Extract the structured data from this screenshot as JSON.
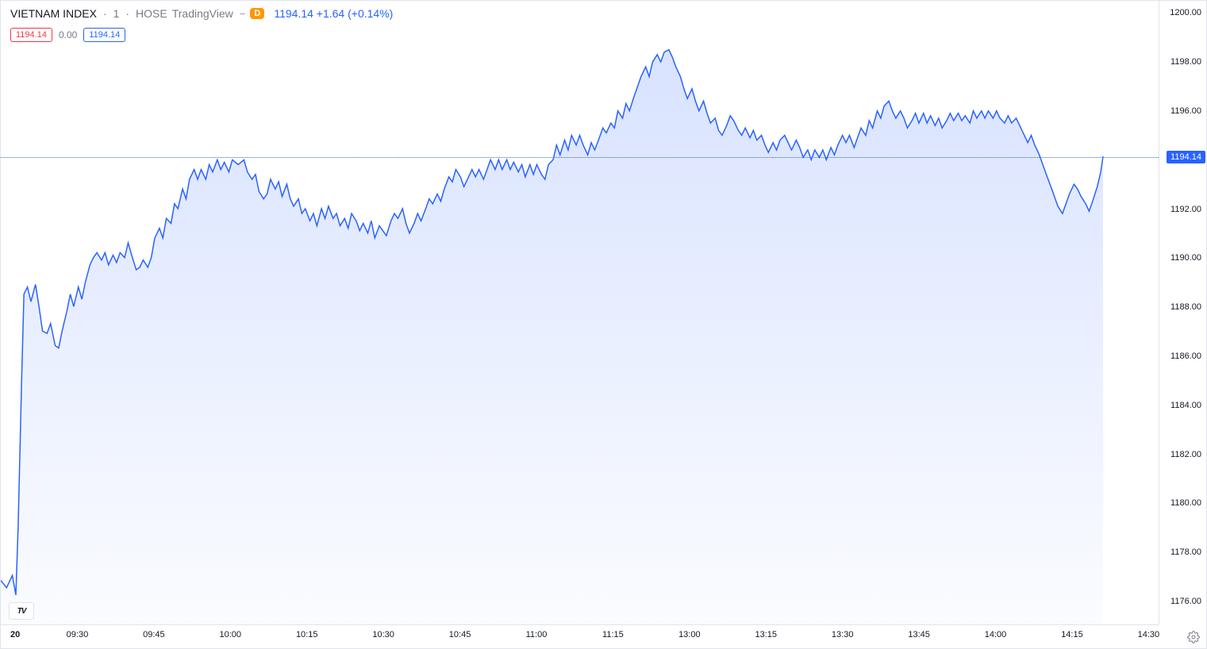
{
  "header": {
    "title": "VIETNAM INDEX",
    "interval": "1",
    "exchange": "HOSE",
    "source": "TradingView",
    "badge_minus": "−",
    "badge_d": "D",
    "last": "1194.14",
    "change": "+1.64",
    "pct": "(+0.14%)"
  },
  "pills": {
    "open_ref": "1194.14",
    "mid": "0.00",
    "close_ref": "1194.14"
  },
  "chart": {
    "type": "area",
    "line_color": "#2962ff",
    "fill_top": "rgba(41,98,255,0.18)",
    "fill_bottom": "rgba(41,98,255,0.02)",
    "background_color": "#ffffff",
    "grid_color": "#e0e3eb",
    "line_width": 1.5,
    "ylim": [
      1175,
      1200.5
    ],
    "yticks": [
      1176,
      1178,
      1180,
      1182,
      1184,
      1186,
      1188,
      1190,
      1192,
      1194,
      1196,
      1198,
      1200
    ],
    "ytick_labels": [
      "1176.00",
      "1178.00",
      "1180.00",
      "1182.00",
      "1184.00",
      "1186.00",
      "1188.00",
      "1190.00",
      "1192.00",
      "1194.00",
      "1196.00",
      "1198.00",
      "1200.00"
    ],
    "current_price": 1194.14,
    "current_label": "1194.14",
    "x_labels": [
      "20",
      "09:30",
      "09:45",
      "10:00",
      "10:15",
      "10:30",
      "10:45",
      "11:00",
      "11:15",
      "13:00",
      "13:15",
      "13:30",
      "13:45",
      "14:00",
      "14:15",
      "14:30"
    ],
    "x_positions": [
      0,
      6.6,
      13.2,
      19.8,
      26.4,
      33.0,
      39.6,
      46.2,
      52.8,
      59.4,
      66.0,
      72.6,
      79.2,
      85.8,
      92.4,
      99.0
    ],
    "series": [
      [
        0,
        1176.8
      ],
      [
        0.5,
        1176.5
      ],
      [
        1,
        1177.0
      ],
      [
        1.3,
        1176.2
      ],
      [
        1.5,
        1179.0
      ],
      [
        1.8,
        1185.0
      ],
      [
        2.0,
        1188.5
      ],
      [
        2.3,
        1188.8
      ],
      [
        2.6,
        1188.2
      ],
      [
        3.0,
        1188.9
      ],
      [
        3.3,
        1188.0
      ],
      [
        3.6,
        1187.0
      ],
      [
        4.0,
        1186.9
      ],
      [
        4.3,
        1187.3
      ],
      [
        4.7,
        1186.4
      ],
      [
        5.0,
        1186.3
      ],
      [
        5.3,
        1187.0
      ],
      [
        5.7,
        1187.8
      ],
      [
        6.0,
        1188.5
      ],
      [
        6.3,
        1188.0
      ],
      [
        6.7,
        1188.8
      ],
      [
        7.0,
        1188.3
      ],
      [
        7.3,
        1189.0
      ],
      [
        7.7,
        1189.7
      ],
      [
        8.0,
        1190.0
      ],
      [
        8.3,
        1190.2
      ],
      [
        8.7,
        1189.9
      ],
      [
        9.0,
        1190.2
      ],
      [
        9.3,
        1189.7
      ],
      [
        9.7,
        1190.1
      ],
      [
        10.0,
        1189.8
      ],
      [
        10.3,
        1190.2
      ],
      [
        10.7,
        1190.0
      ],
      [
        11.0,
        1190.6
      ],
      [
        11.3,
        1190.1
      ],
      [
        11.7,
        1189.5
      ],
      [
        12.0,
        1189.6
      ],
      [
        12.3,
        1189.9
      ],
      [
        12.7,
        1189.6
      ],
      [
        13.0,
        1190.0
      ],
      [
        13.3,
        1190.8
      ],
      [
        13.7,
        1191.2
      ],
      [
        14.0,
        1190.8
      ],
      [
        14.3,
        1191.6
      ],
      [
        14.7,
        1191.4
      ],
      [
        15.0,
        1192.2
      ],
      [
        15.3,
        1192.0
      ],
      [
        15.7,
        1192.8
      ],
      [
        16.0,
        1192.4
      ],
      [
        16.3,
        1193.2
      ],
      [
        16.7,
        1193.6
      ],
      [
        17.0,
        1193.2
      ],
      [
        17.3,
        1193.6
      ],
      [
        17.7,
        1193.2
      ],
      [
        18.0,
        1193.8
      ],
      [
        18.3,
        1193.5
      ],
      [
        18.7,
        1194.0
      ],
      [
        19.0,
        1193.6
      ],
      [
        19.3,
        1193.9
      ],
      [
        19.7,
        1193.5
      ],
      [
        20.0,
        1194.0
      ],
      [
        20.5,
        1193.8
      ],
      [
        21.0,
        1194.0
      ],
      [
        21.3,
        1193.5
      ],
      [
        21.7,
        1193.2
      ],
      [
        22.0,
        1193.4
      ],
      [
        22.3,
        1192.7
      ],
      [
        22.7,
        1192.4
      ],
      [
        23.0,
        1192.6
      ],
      [
        23.3,
        1193.2
      ],
      [
        23.7,
        1192.8
      ],
      [
        24.0,
        1193.1
      ],
      [
        24.3,
        1192.5
      ],
      [
        24.7,
        1193.0
      ],
      [
        25.0,
        1192.4
      ],
      [
        25.3,
        1192.1
      ],
      [
        25.7,
        1192.4
      ],
      [
        26.0,
        1191.8
      ],
      [
        26.3,
        1192.0
      ],
      [
        26.7,
        1191.5
      ],
      [
        27.0,
        1191.8
      ],
      [
        27.3,
        1191.3
      ],
      [
        27.7,
        1192.0
      ],
      [
        28.0,
        1191.6
      ],
      [
        28.3,
        1192.1
      ],
      [
        28.7,
        1191.6
      ],
      [
        29.0,
        1191.8
      ],
      [
        29.3,
        1191.3
      ],
      [
        29.7,
        1191.6
      ],
      [
        30.0,
        1191.2
      ],
      [
        30.3,
        1191.8
      ],
      [
        30.7,
        1191.5
      ],
      [
        31.0,
        1191.1
      ],
      [
        31.3,
        1191.4
      ],
      [
        31.7,
        1191.0
      ],
      [
        32.0,
        1191.5
      ],
      [
        32.3,
        1190.8
      ],
      [
        32.7,
        1191.3
      ],
      [
        33.0,
        1191.1
      ],
      [
        33.3,
        1190.9
      ],
      [
        33.7,
        1191.5
      ],
      [
        34.0,
        1191.8
      ],
      [
        34.3,
        1191.6
      ],
      [
        34.7,
        1192.0
      ],
      [
        35.0,
        1191.4
      ],
      [
        35.3,
        1191.0
      ],
      [
        35.7,
        1191.4
      ],
      [
        36.0,
        1191.8
      ],
      [
        36.3,
        1191.5
      ],
      [
        36.7,
        1192.0
      ],
      [
        37.0,
        1192.4
      ],
      [
        37.3,
        1192.2
      ],
      [
        37.7,
        1192.6
      ],
      [
        38.0,
        1192.3
      ],
      [
        38.3,
        1192.8
      ],
      [
        38.7,
        1193.3
      ],
      [
        39.0,
        1193.1
      ],
      [
        39.3,
        1193.6
      ],
      [
        39.7,
        1193.3
      ],
      [
        40.0,
        1192.9
      ],
      [
        40.3,
        1193.2
      ],
      [
        40.7,
        1193.6
      ],
      [
        41.0,
        1193.3
      ],
      [
        41.3,
        1193.6
      ],
      [
        41.7,
        1193.2
      ],
      [
        42.0,
        1193.6
      ],
      [
        42.3,
        1194.0
      ],
      [
        42.7,
        1193.6
      ],
      [
        43.0,
        1194.0
      ],
      [
        43.3,
        1193.6
      ],
      [
        43.7,
        1194.0
      ],
      [
        44.0,
        1193.6
      ],
      [
        44.3,
        1193.9
      ],
      [
        44.7,
        1193.5
      ],
      [
        45.0,
        1193.8
      ],
      [
        45.3,
        1193.3
      ],
      [
        45.7,
        1193.8
      ],
      [
        46.0,
        1193.4
      ],
      [
        46.3,
        1193.8
      ],
      [
        46.7,
        1193.4
      ],
      [
        47.0,
        1193.2
      ],
      [
        47.3,
        1193.8
      ],
      [
        47.7,
        1194.0
      ],
      [
        48.0,
        1194.6
      ],
      [
        48.3,
        1194.2
      ],
      [
        48.7,
        1194.8
      ],
      [
        49.0,
        1194.4
      ],
      [
        49.3,
        1195.0
      ],
      [
        49.7,
        1194.6
      ],
      [
        50.0,
        1195.0
      ],
      [
        50.3,
        1194.6
      ],
      [
        50.7,
        1194.2
      ],
      [
        51.0,
        1194.7
      ],
      [
        51.3,
        1194.4
      ],
      [
        51.7,
        1194.9
      ],
      [
        52.0,
        1195.3
      ],
      [
        52.3,
        1195.1
      ],
      [
        52.7,
        1195.5
      ],
      [
        53.0,
        1195.3
      ],
      [
        53.3,
        1196.0
      ],
      [
        53.7,
        1195.7
      ],
      [
        54.0,
        1196.3
      ],
      [
        54.3,
        1196.0
      ],
      [
        54.7,
        1196.6
      ],
      [
        55.0,
        1197.0
      ],
      [
        55.3,
        1197.4
      ],
      [
        55.7,
        1197.8
      ],
      [
        56.0,
        1197.4
      ],
      [
        56.3,
        1198.0
      ],
      [
        56.7,
        1198.3
      ],
      [
        57.0,
        1198.0
      ],
      [
        57.3,
        1198.4
      ],
      [
        57.7,
        1198.5
      ],
      [
        58.0,
        1198.2
      ],
      [
        58.3,
        1197.8
      ],
      [
        58.7,
        1197.4
      ],
      [
        59.0,
        1196.9
      ],
      [
        59.3,
        1196.5
      ],
      [
        59.7,
        1196.9
      ],
      [
        60.0,
        1196.4
      ],
      [
        60.3,
        1196.0
      ],
      [
        60.7,
        1196.4
      ],
      [
        61.0,
        1195.9
      ],
      [
        61.3,
        1195.5
      ],
      [
        61.7,
        1195.7
      ],
      [
        62.0,
        1195.2
      ],
      [
        62.3,
        1195.0
      ],
      [
        62.7,
        1195.4
      ],
      [
        63.0,
        1195.8
      ],
      [
        63.3,
        1195.6
      ],
      [
        63.7,
        1195.2
      ],
      [
        64.0,
        1195.0
      ],
      [
        64.3,
        1195.3
      ],
      [
        64.7,
        1194.9
      ],
      [
        65.0,
        1195.2
      ],
      [
        65.3,
        1194.8
      ],
      [
        65.7,
        1195.0
      ],
      [
        66.0,
        1194.6
      ],
      [
        66.3,
        1194.3
      ],
      [
        66.7,
        1194.7
      ],
      [
        67.0,
        1194.4
      ],
      [
        67.3,
        1194.8
      ],
      [
        67.7,
        1195.0
      ],
      [
        68.0,
        1194.7
      ],
      [
        68.3,
        1194.4
      ],
      [
        68.7,
        1194.8
      ],
      [
        69.0,
        1194.5
      ],
      [
        69.3,
        1194.1
      ],
      [
        69.7,
        1194.4
      ],
      [
        70.0,
        1194.0
      ],
      [
        70.3,
        1194.4
      ],
      [
        70.7,
        1194.1
      ],
      [
        71.0,
        1194.4
      ],
      [
        71.3,
        1194.0
      ],
      [
        71.7,
        1194.5
      ],
      [
        72.0,
        1194.2
      ],
      [
        72.3,
        1194.6
      ],
      [
        72.7,
        1195.0
      ],
      [
        73.0,
        1194.7
      ],
      [
        73.3,
        1195.0
      ],
      [
        73.7,
        1194.5
      ],
      [
        74.0,
        1194.9
      ],
      [
        74.3,
        1195.3
      ],
      [
        74.7,
        1195.0
      ],
      [
        75.0,
        1195.6
      ],
      [
        75.3,
        1195.3
      ],
      [
        75.7,
        1196.0
      ],
      [
        76.0,
        1195.7
      ],
      [
        76.3,
        1196.2
      ],
      [
        76.7,
        1196.4
      ],
      [
        77.0,
        1196.0
      ],
      [
        77.3,
        1195.7
      ],
      [
        77.7,
        1196.0
      ],
      [
        78.0,
        1195.7
      ],
      [
        78.3,
        1195.3
      ],
      [
        78.7,
        1195.6
      ],
      [
        79.0,
        1195.9
      ],
      [
        79.3,
        1195.5
      ],
      [
        79.7,
        1195.9
      ],
      [
        80.0,
        1195.5
      ],
      [
        80.3,
        1195.8
      ],
      [
        80.7,
        1195.4
      ],
      [
        81.0,
        1195.7
      ],
      [
        81.3,
        1195.3
      ],
      [
        81.7,
        1195.6
      ],
      [
        82.0,
        1195.9
      ],
      [
        82.3,
        1195.6
      ],
      [
        82.7,
        1195.9
      ],
      [
        83.0,
        1195.6
      ],
      [
        83.3,
        1195.8
      ],
      [
        83.7,
        1195.5
      ],
      [
        84.0,
        1196.0
      ],
      [
        84.3,
        1195.7
      ],
      [
        84.7,
        1196.0
      ],
      [
        85.0,
        1195.7
      ],
      [
        85.3,
        1196.0
      ],
      [
        85.7,
        1195.7
      ],
      [
        86.0,
        1196.0
      ],
      [
        86.3,
        1195.7
      ],
      [
        86.7,
        1195.5
      ],
      [
        87.0,
        1195.8
      ],
      [
        87.3,
        1195.5
      ],
      [
        87.7,
        1195.7
      ],
      [
        88.0,
        1195.4
      ],
      [
        88.3,
        1195.1
      ],
      [
        88.7,
        1194.7
      ],
      [
        89.0,
        1195.0
      ],
      [
        89.3,
        1194.6
      ],
      [
        89.7,
        1194.2
      ],
      [
        90.0,
        1193.8
      ],
      [
        90.3,
        1193.4
      ],
      [
        90.7,
        1192.9
      ],
      [
        91.0,
        1192.5
      ],
      [
        91.3,
        1192.1
      ],
      [
        91.7,
        1191.8
      ],
      [
        92.0,
        1192.2
      ],
      [
        92.3,
        1192.6
      ],
      [
        92.7,
        1193.0
      ],
      [
        93.0,
        1192.8
      ],
      [
        93.3,
        1192.5
      ],
      [
        93.7,
        1192.2
      ],
      [
        94.0,
        1191.9
      ],
      [
        94.3,
        1192.3
      ],
      [
        94.7,
        1192.9
      ],
      [
        95.0,
        1193.5
      ],
      [
        95.2,
        1194.14
      ]
    ]
  },
  "logo_text": "TV"
}
